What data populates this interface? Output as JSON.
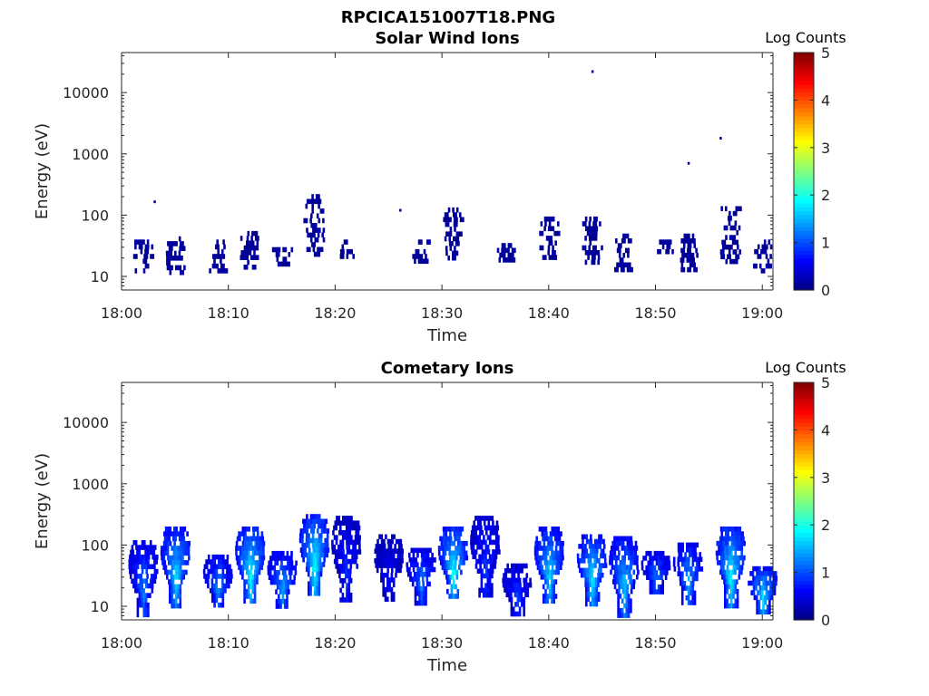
{
  "figure": {
    "title": "RPCICA151007T18.PNG"
  },
  "colorbar": {
    "label": "Log Counts",
    "min": 0,
    "max": 5,
    "ticks": [
      "0",
      "1",
      "2",
      "3",
      "4",
      "5"
    ]
  },
  "chart_data": [
    {
      "type": "heatmap",
      "title": "Solar Wind Ions",
      "xlabel": "Time",
      "ylabel": "Energy (eV)",
      "y_scale": "log",
      "xlim": [
        "18:00",
        "19:01"
      ],
      "ylim": [
        6,
        45000
      ],
      "x_ticks": [
        "18:00",
        "18:10",
        "18:20",
        "18:30",
        "18:40",
        "18:50",
        "19:00"
      ],
      "y_ticks": [
        "10",
        "100",
        "1000",
        "10000"
      ],
      "colorbar_label": "Log Counts",
      "clusters": [
        {
          "time": "18:02",
          "e_min": 12,
          "e_max": 40,
          "log_counts": 0.1
        },
        {
          "time": "18:05",
          "e_min": 12,
          "e_max": 45,
          "log_counts": 0.1
        },
        {
          "time": "18:09",
          "e_min": 13,
          "e_max": 40,
          "log_counts": 0.1
        },
        {
          "time": "18:12",
          "e_min": 14,
          "e_max": 55,
          "log_counts": 0.1
        },
        {
          "time": "18:15",
          "e_min": 17,
          "e_max": 30,
          "log_counts": 0.1
        },
        {
          "time": "18:18",
          "e_min": 22,
          "e_max": 220,
          "log_counts": 0.1
        },
        {
          "time": "18:21",
          "e_min": 22,
          "e_max": 40,
          "log_counts": 0.1
        },
        {
          "time": "18:28",
          "e_min": 18,
          "e_max": 40,
          "log_counts": 0.1
        },
        {
          "time": "18:31",
          "e_min": 20,
          "e_max": 160,
          "log_counts": 0.1
        },
        {
          "time": "18:36",
          "e_min": 18,
          "e_max": 35,
          "log_counts": 0.1
        },
        {
          "time": "18:40",
          "e_min": 20,
          "e_max": 95,
          "log_counts": 0.1
        },
        {
          "time": "18:44",
          "e_min": 16,
          "e_max": 95,
          "log_counts": 0.1
        },
        {
          "time": "18:47",
          "e_min": 12,
          "e_max": 50,
          "log_counts": 0.1
        },
        {
          "time": "18:51",
          "e_min": 24,
          "e_max": 40,
          "log_counts": 0.1
        },
        {
          "time": "18:53",
          "e_min": 13,
          "e_max": 50,
          "log_counts": 0.1
        },
        {
          "time": "18:57",
          "e_min": 18,
          "e_max": 140,
          "log_counts": 0.1
        },
        {
          "time": "19:00",
          "e_min": 12,
          "e_max": 40,
          "log_counts": 0.1
        }
      ],
      "points": [
        {
          "time": "18:44",
          "energy": 22000
        },
        {
          "time": "18:56",
          "energy": 1800
        },
        {
          "time": "18:53",
          "energy": 700
        },
        {
          "time": "18:26",
          "energy": 120
        },
        {
          "time": "18:03",
          "energy": 165
        }
      ]
    },
    {
      "type": "heatmap",
      "title": "Cometary Ions",
      "xlabel": "Time",
      "ylabel": "Energy (eV)",
      "y_scale": "log",
      "xlim": [
        "18:00",
        "19:01"
      ],
      "ylim": [
        6,
        45000
      ],
      "x_ticks": [
        "18:00",
        "18:10",
        "18:20",
        "18:30",
        "18:40",
        "18:50",
        "19:00"
      ],
      "y_ticks": [
        "10",
        "100",
        "1000",
        "10000"
      ],
      "colorbar_label": "Log Counts",
      "clusters": [
        {
          "time": "18:02",
          "e_min": 7,
          "e_max": 120,
          "log_counts": 1.3
        },
        {
          "time": "18:05",
          "e_min": 11,
          "e_max": 200,
          "log_counts": 1.8
        },
        {
          "time": "18:09",
          "e_min": 10,
          "e_max": 70,
          "log_counts": 1.4
        },
        {
          "time": "18:12",
          "e_min": 12,
          "e_max": 200,
          "log_counts": 2.0
        },
        {
          "time": "18:15",
          "e_min": 10,
          "e_max": 80,
          "log_counts": 1.5
        },
        {
          "time": "18:18",
          "e_min": 15,
          "e_max": 320,
          "log_counts": 2.0
        },
        {
          "time": "18:21",
          "e_min": 12,
          "e_max": 300,
          "log_counts": 0.9
        },
        {
          "time": "18:25",
          "e_min": 12,
          "e_max": 150,
          "log_counts": 0.7
        },
        {
          "time": "18:28",
          "e_min": 12,
          "e_max": 90,
          "log_counts": 1.3
        },
        {
          "time": "18:31",
          "e_min": 14,
          "e_max": 200,
          "log_counts": 2.0
        },
        {
          "time": "18:34",
          "e_min": 15,
          "e_max": 300,
          "log_counts": 1.0
        },
        {
          "time": "18:37",
          "e_min": 7,
          "e_max": 50,
          "log_counts": 1.0
        },
        {
          "time": "18:40",
          "e_min": 12,
          "e_max": 200,
          "log_counts": 1.8
        },
        {
          "time": "18:44",
          "e_min": 11,
          "e_max": 150,
          "log_counts": 1.9
        },
        {
          "time": "18:47",
          "e_min": 7,
          "e_max": 140,
          "log_counts": 1.7
        },
        {
          "time": "18:50",
          "e_min": 18,
          "e_max": 80,
          "log_counts": 1.3
        },
        {
          "time": "18:53",
          "e_min": 12,
          "e_max": 110,
          "log_counts": 1.5
        },
        {
          "time": "18:57",
          "e_min": 11,
          "e_max": 200,
          "log_counts": 2.0
        },
        {
          "time": "19:00",
          "e_min": 8,
          "e_max": 45,
          "log_counts": 1.8
        }
      ],
      "points": []
    }
  ]
}
